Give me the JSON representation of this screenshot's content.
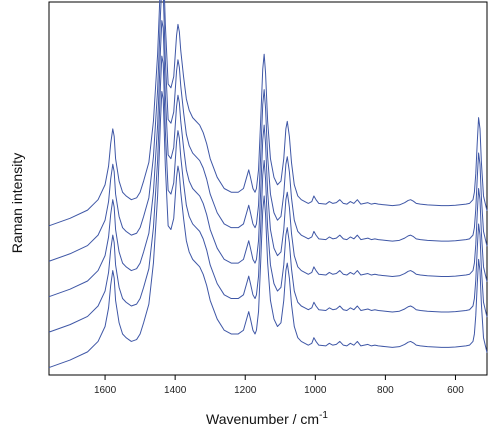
{
  "chart_data": {
    "type": "line",
    "title": "",
    "xlabel": "Wavenumber / cm",
    "xlabel_superscript": "-1",
    "ylabel": "Raman intensity",
    "x_reversed": true,
    "xlim": [
      1760,
      510
    ],
    "ylim": [
      0,
      1
    ],
    "y_ticks_shown": false,
    "grid": false,
    "legend": "none",
    "x_ticks": [
      1600,
      1400,
      1200,
      1000,
      800,
      600
    ],
    "line_color": "#3f57a6",
    "x": [
      1760,
      1700,
      1650,
      1620,
      1600,
      1590,
      1584,
      1578,
      1574,
      1570,
      1560,
      1550,
      1540,
      1525,
      1510,
      1500,
      1490,
      1475,
      1462,
      1450,
      1445,
      1442,
      1438,
      1434,
      1428,
      1420,
      1412,
      1404,
      1396,
      1392,
      1388,
      1384,
      1376,
      1368,
      1360,
      1350,
      1340,
      1330,
      1320,
      1310,
      1300,
      1280,
      1260,
      1240,
      1220,
      1205,
      1196,
      1190,
      1185,
      1178,
      1172,
      1168,
      1162,
      1156,
      1150,
      1146,
      1142,
      1136,
      1128,
      1118,
      1108,
      1098,
      1090,
      1084,
      1080,
      1074,
      1068,
      1060,
      1050,
      1040,
      1030,
      1020,
      1010,
      1004,
      998,
      990,
      970,
      960,
      950,
      940,
      930,
      920,
      910,
      900,
      890,
      880,
      870,
      860,
      850,
      840,
      830,
      820,
      800,
      780,
      760,
      745,
      735,
      728,
      720,
      712,
      700,
      680,
      660,
      640,
      620,
      600,
      580,
      570,
      560,
      550,
      546,
      542,
      538,
      534,
      530,
      526,
      520,
      510
    ],
    "series": [
      {
        "values": [
          0.02,
          0.04,
          0.062,
          0.09,
          0.13,
          0.18,
          0.24,
          0.28,
          0.26,
          0.2,
          0.14,
          0.11,
          0.1,
          0.09,
          0.095,
          0.11,
          0.14,
          0.19,
          0.3,
          0.48,
          0.6,
          0.68,
          0.76,
          0.74,
          0.56,
          0.4,
          0.39,
          0.42,
          0.53,
          0.56,
          0.54,
          0.49,
          0.42,
          0.36,
          0.33,
          0.31,
          0.3,
          0.29,
          0.27,
          0.24,
          0.2,
          0.15,
          0.12,
          0.11,
          0.11,
          0.12,
          0.15,
          0.17,
          0.15,
          0.12,
          0.11,
          0.12,
          0.17,
          0.3,
          0.44,
          0.48,
          0.43,
          0.3,
          0.2,
          0.15,
          0.13,
          0.14,
          0.2,
          0.28,
          0.3,
          0.26,
          0.19,
          0.13,
          0.1,
          0.09,
          0.085,
          0.08,
          0.085,
          0.1,
          0.09,
          0.08,
          0.078,
          0.085,
          0.08,
          0.082,
          0.09,
          0.08,
          0.078,
          0.085,
          0.08,
          0.09,
          0.078,
          0.08,
          0.082,
          0.078,
          0.08,
          0.078,
          0.076,
          0.074,
          0.076,
          0.082,
          0.088,
          0.09,
          0.086,
          0.08,
          0.078,
          0.076,
          0.075,
          0.074,
          0.074,
          0.075,
          0.077,
          0.078,
          0.08,
          0.09,
          0.11,
          0.16,
          0.24,
          0.31,
          0.28,
          0.19,
          0.1,
          0.06
        ]
      },
      {
        "values": [
          0.02,
          0.04,
          0.062,
          0.09,
          0.13,
          0.18,
          0.24,
          0.28,
          0.26,
          0.2,
          0.14,
          0.11,
          0.1,
          0.09,
          0.095,
          0.11,
          0.14,
          0.19,
          0.3,
          0.48,
          0.6,
          0.68,
          0.76,
          0.74,
          0.56,
          0.4,
          0.39,
          0.42,
          0.53,
          0.56,
          0.54,
          0.49,
          0.42,
          0.36,
          0.33,
          0.31,
          0.3,
          0.29,
          0.27,
          0.24,
          0.2,
          0.15,
          0.12,
          0.11,
          0.11,
          0.12,
          0.15,
          0.17,
          0.15,
          0.12,
          0.11,
          0.12,
          0.17,
          0.3,
          0.44,
          0.48,
          0.43,
          0.3,
          0.2,
          0.15,
          0.13,
          0.14,
          0.2,
          0.28,
          0.3,
          0.26,
          0.19,
          0.13,
          0.1,
          0.09,
          0.085,
          0.08,
          0.085,
          0.1,
          0.09,
          0.08,
          0.078,
          0.085,
          0.08,
          0.082,
          0.09,
          0.08,
          0.078,
          0.085,
          0.08,
          0.09,
          0.078,
          0.08,
          0.082,
          0.078,
          0.08,
          0.078,
          0.076,
          0.074,
          0.076,
          0.082,
          0.088,
          0.09,
          0.086,
          0.08,
          0.078,
          0.076,
          0.075,
          0.074,
          0.074,
          0.075,
          0.077,
          0.078,
          0.08,
          0.09,
          0.11,
          0.16,
          0.24,
          0.31,
          0.28,
          0.19,
          0.1,
          0.06
        ]
      },
      {
        "values": [
          0.02,
          0.04,
          0.062,
          0.09,
          0.13,
          0.18,
          0.24,
          0.28,
          0.26,
          0.2,
          0.14,
          0.11,
          0.1,
          0.09,
          0.095,
          0.11,
          0.14,
          0.19,
          0.3,
          0.48,
          0.6,
          0.68,
          0.76,
          0.74,
          0.56,
          0.4,
          0.39,
          0.42,
          0.53,
          0.56,
          0.54,
          0.49,
          0.42,
          0.36,
          0.33,
          0.31,
          0.3,
          0.29,
          0.27,
          0.24,
          0.2,
          0.15,
          0.12,
          0.11,
          0.11,
          0.12,
          0.15,
          0.17,
          0.15,
          0.12,
          0.11,
          0.12,
          0.17,
          0.3,
          0.44,
          0.48,
          0.43,
          0.3,
          0.2,
          0.15,
          0.13,
          0.14,
          0.2,
          0.28,
          0.3,
          0.26,
          0.19,
          0.13,
          0.1,
          0.09,
          0.085,
          0.08,
          0.085,
          0.1,
          0.09,
          0.08,
          0.078,
          0.085,
          0.08,
          0.082,
          0.09,
          0.08,
          0.078,
          0.085,
          0.08,
          0.09,
          0.078,
          0.08,
          0.082,
          0.078,
          0.08,
          0.078,
          0.076,
          0.074,
          0.076,
          0.082,
          0.088,
          0.09,
          0.086,
          0.08,
          0.078,
          0.076,
          0.075,
          0.074,
          0.074,
          0.075,
          0.077,
          0.078,
          0.08,
          0.09,
          0.11,
          0.16,
          0.24,
          0.31,
          0.28,
          0.19,
          0.1,
          0.06
        ]
      },
      {
        "values": [
          0.02,
          0.04,
          0.062,
          0.09,
          0.13,
          0.18,
          0.24,
          0.28,
          0.26,
          0.2,
          0.14,
          0.11,
          0.1,
          0.09,
          0.095,
          0.11,
          0.14,
          0.19,
          0.3,
          0.48,
          0.6,
          0.68,
          0.76,
          0.74,
          0.56,
          0.4,
          0.39,
          0.42,
          0.53,
          0.56,
          0.54,
          0.49,
          0.42,
          0.36,
          0.33,
          0.31,
          0.3,
          0.29,
          0.27,
          0.24,
          0.2,
          0.15,
          0.12,
          0.11,
          0.11,
          0.12,
          0.15,
          0.17,
          0.15,
          0.12,
          0.11,
          0.12,
          0.17,
          0.3,
          0.44,
          0.48,
          0.43,
          0.3,
          0.2,
          0.15,
          0.13,
          0.14,
          0.2,
          0.28,
          0.3,
          0.26,
          0.19,
          0.13,
          0.1,
          0.09,
          0.085,
          0.08,
          0.085,
          0.1,
          0.09,
          0.08,
          0.078,
          0.085,
          0.08,
          0.082,
          0.09,
          0.08,
          0.078,
          0.085,
          0.08,
          0.09,
          0.078,
          0.08,
          0.082,
          0.078,
          0.08,
          0.078,
          0.076,
          0.074,
          0.076,
          0.082,
          0.088,
          0.09,
          0.086,
          0.08,
          0.078,
          0.076,
          0.075,
          0.074,
          0.074,
          0.075,
          0.077,
          0.078,
          0.08,
          0.09,
          0.11,
          0.16,
          0.24,
          0.31,
          0.28,
          0.19,
          0.1,
          0.06
        ]
      },
      {
        "values": [
          0.02,
          0.04,
          0.062,
          0.09,
          0.13,
          0.18,
          0.24,
          0.28,
          0.26,
          0.2,
          0.14,
          0.11,
          0.1,
          0.09,
          0.095,
          0.11,
          0.14,
          0.19,
          0.3,
          0.48,
          0.6,
          0.68,
          0.76,
          0.74,
          0.56,
          0.4,
          0.39,
          0.42,
          0.53,
          0.56,
          0.54,
          0.49,
          0.42,
          0.36,
          0.33,
          0.31,
          0.3,
          0.29,
          0.27,
          0.24,
          0.2,
          0.15,
          0.12,
          0.11,
          0.11,
          0.12,
          0.15,
          0.17,
          0.15,
          0.12,
          0.11,
          0.12,
          0.17,
          0.3,
          0.44,
          0.48,
          0.43,
          0.3,
          0.2,
          0.15,
          0.13,
          0.14,
          0.2,
          0.28,
          0.3,
          0.26,
          0.19,
          0.13,
          0.1,
          0.09,
          0.085,
          0.08,
          0.085,
          0.1,
          0.09,
          0.08,
          0.078,
          0.085,
          0.08,
          0.082,
          0.09,
          0.08,
          0.078,
          0.085,
          0.08,
          0.09,
          0.078,
          0.08,
          0.082,
          0.078,
          0.08,
          0.078,
          0.076,
          0.074,
          0.076,
          0.082,
          0.088,
          0.09,
          0.086,
          0.08,
          0.078,
          0.076,
          0.075,
          0.074,
          0.074,
          0.075,
          0.077,
          0.078,
          0.08,
          0.09,
          0.11,
          0.16,
          0.24,
          0.31,
          0.28,
          0.19,
          0.1,
          0.06
        ]
      }
    ],
    "series_offsets": [
      0.38,
      0.285,
      0.19,
      0.095,
      0.0
    ]
  }
}
